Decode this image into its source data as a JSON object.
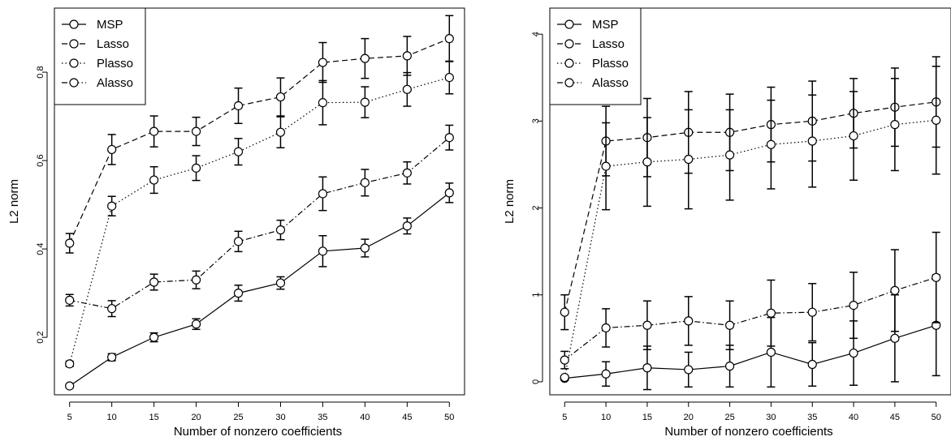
{
  "chart_data": [
    {
      "type": "line",
      "xlabel": "Number of nonzero coefficients",
      "ylabel": "L2 norm",
      "x": [
        5,
        10,
        15,
        20,
        25,
        30,
        35,
        40,
        45,
        50
      ],
      "xticks": [
        "5",
        "10",
        "15",
        "20",
        "25",
        "30",
        "35",
        "40",
        "45",
        "50"
      ],
      "yticks": [
        0.2,
        0.4,
        0.6,
        0.8
      ],
      "ytick_labels": [
        "0.2",
        "0.4",
        "0.6",
        "0.8"
      ],
      "ylim": [
        0.07,
        0.945
      ],
      "xlim": [
        3.2,
        51.8
      ],
      "legend": "top-left",
      "grid": false,
      "series": [
        {
          "name": "MSP",
          "style": "solid",
          "values": [
            0.09,
            0.155,
            0.2,
            0.23,
            0.3,
            0.323,
            0.395,
            0.402,
            0.452,
            0.527
          ],
          "err": [
            0.004,
            0.008,
            0.01,
            0.012,
            0.018,
            0.014,
            0.035,
            0.02,
            0.018,
            0.022
          ]
        },
        {
          "name": "Lasso",
          "style": "dashed",
          "values": [
            0.413,
            0.625,
            0.666,
            0.666,
            0.724,
            0.744,
            0.822,
            0.831,
            0.837,
            0.876
          ],
          "err": [
            0.022,
            0.034,
            0.035,
            0.032,
            0.04,
            0.043,
            0.045,
            0.045,
            0.044,
            0.052
          ]
        },
        {
          "name": "Plasso",
          "style": "dotted",
          "values": [
            0.14,
            0.497,
            0.556,
            0.583,
            0.62,
            0.664,
            0.731,
            0.732,
            0.761,
            0.788
          ],
          "err": [
            0.006,
            0.022,
            0.03,
            0.028,
            0.03,
            0.035,
            0.05,
            0.035,
            0.038,
            0.037
          ]
        },
        {
          "name": "Alasso",
          "style": "dashdot",
          "values": [
            0.284,
            0.265,
            0.325,
            0.33,
            0.417,
            0.443,
            0.525,
            0.55,
            0.572,
            0.652
          ],
          "err": [
            0.013,
            0.018,
            0.018,
            0.02,
            0.023,
            0.022,
            0.038,
            0.03,
            0.025,
            0.028
          ]
        }
      ]
    },
    {
      "type": "line",
      "xlabel": "Number of nonzero coefficients",
      "ylabel": "L2 norm",
      "x": [
        5,
        10,
        15,
        20,
        25,
        30,
        35,
        40,
        45,
        50
      ],
      "xticks": [
        "5",
        "10",
        "15",
        "20",
        "25",
        "30",
        "35",
        "40",
        "45",
        "50"
      ],
      "yticks": [
        0,
        1,
        2,
        3,
        4
      ],
      "ytick_labels": [
        "0",
        "1",
        "2",
        "3",
        "4"
      ],
      "ylim": [
        -0.15,
        4.3
      ],
      "xlim": [
        3.2,
        51.8
      ],
      "legend": "top-left",
      "grid": false,
      "series": [
        {
          "name": "MSP",
          "style": "solid",
          "values": [
            0.04,
            0.09,
            0.16,
            0.14,
            0.18,
            0.34,
            0.2,
            0.33,
            0.5,
            0.65
          ],
          "err": [
            0.02,
            0.14,
            0.25,
            0.2,
            0.24,
            0.4,
            0.25,
            0.37,
            0.5,
            0.58
          ]
        },
        {
          "name": "Lasso",
          "style": "dashed",
          "values": [
            0.8,
            2.77,
            2.81,
            2.87,
            2.87,
            2.96,
            3.0,
            3.09,
            3.16,
            3.22
          ],
          "err": [
            0.2,
            0.4,
            0.45,
            0.47,
            0.44,
            0.43,
            0.46,
            0.4,
            0.45,
            0.52
          ]
        },
        {
          "name": "Plasso",
          "style": "dotted",
          "values": [
            0.05,
            2.48,
            2.53,
            2.56,
            2.61,
            2.73,
            2.77,
            2.83,
            2.96,
            3.01
          ],
          "err": [
            0.02,
            0.5,
            0.51,
            0.57,
            0.52,
            0.51,
            0.53,
            0.51,
            0.53,
            0.62
          ]
        },
        {
          "name": "Alasso",
          "style": "dashdot",
          "values": [
            0.25,
            0.62,
            0.65,
            0.7,
            0.65,
            0.79,
            0.8,
            0.88,
            1.05,
            1.2
          ],
          "err": [
            0.1,
            0.22,
            0.28,
            0.28,
            0.28,
            0.38,
            0.33,
            0.38,
            0.47,
            0.52
          ]
        }
      ]
    }
  ]
}
